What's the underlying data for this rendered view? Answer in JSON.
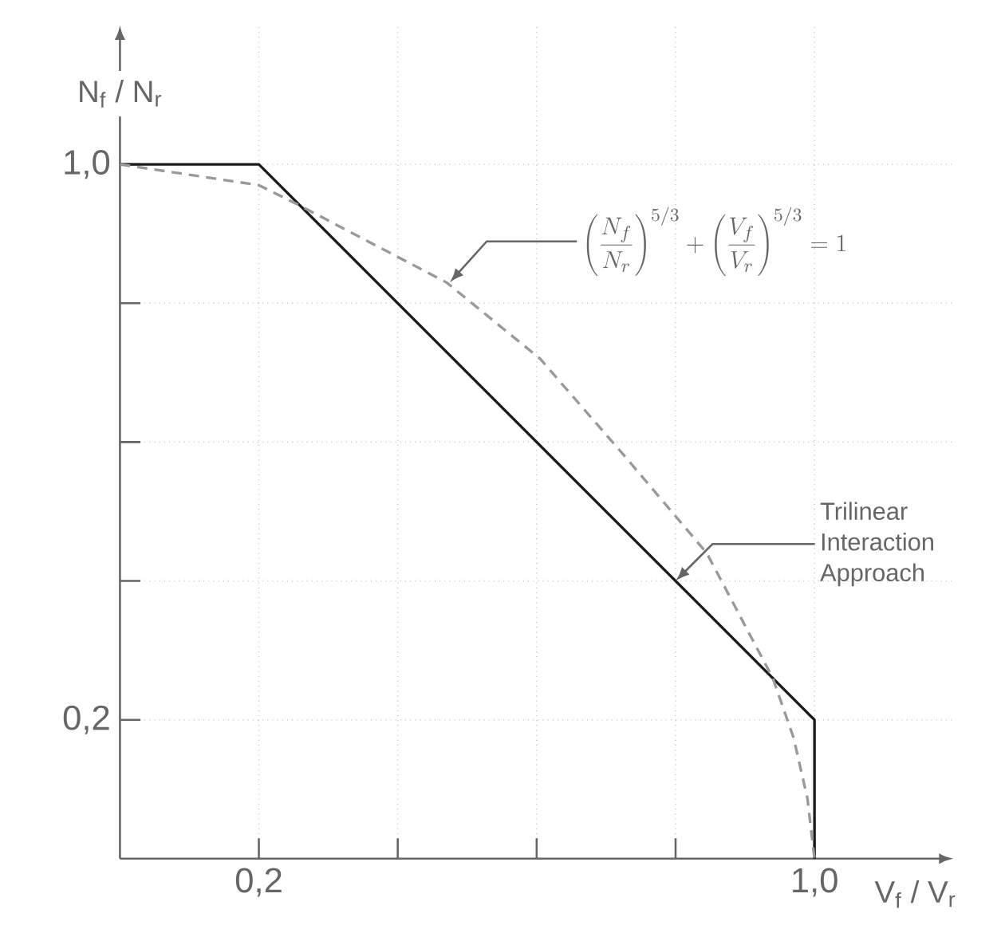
{
  "chart_data": {
    "type": "line",
    "xlabel": "V$_{f}$ / V$_{r}$",
    "ylabel": "N$_{f}$ / N$_{r}$",
    "xlim": [
      0,
      1.2
    ],
    "ylim": [
      0,
      1.2
    ],
    "xticks": [
      {
        "value": 0.2,
        "label": "0,2"
      },
      {
        "value": 0.4,
        "label": null
      },
      {
        "value": 0.6,
        "label": null
      },
      {
        "value": 0.8,
        "label": null
      },
      {
        "value": 1.0,
        "label": "1,0"
      }
    ],
    "yticks": [
      {
        "value": 0.2,
        "label": "0,2"
      },
      {
        "value": 0.4,
        "label": null
      },
      {
        "value": 0.6,
        "label": null
      },
      {
        "value": 0.8,
        "label": null
      },
      {
        "value": 1.0,
        "label": "1,0"
      }
    ],
    "grid": true,
    "marker": "none",
    "series": [
      {
        "color": "#1a1a1a",
        "line_style": "solid",
        "x": [
          0,
          0.2,
          1.0,
          1.0
        ],
        "values": [
          1.0,
          1.0,
          0.2,
          0
        ]
      },
      {
        "color": "#999999",
        "line_style": "dashed",
        "x": [
          0,
          0.2,
          0.26,
          0.47,
          0.605,
          0.73,
          0.845,
          0.94,
          0.97,
          0.99,
          1.0
        ],
        "values": [
          1.0,
          0.97,
          0.94,
          0.83,
          0.72,
          0.576,
          0.44,
          0.26,
          0.174,
          0.086,
          0
        ]
      }
    ],
    "annotations": [
      {
        "text": "\\left(\\frac{N_f}{N_r}\\right)^{5/3}+\\left(\\frac{V_f}{V_r}\\right)^{5/3}=1",
        "x": 0.475,
        "y": 0.83
      },
      {
        "text": "Trilinear\nInteraction\nApproach",
        "x": 0.8,
        "y": 0.4
      }
    ]
  }
}
